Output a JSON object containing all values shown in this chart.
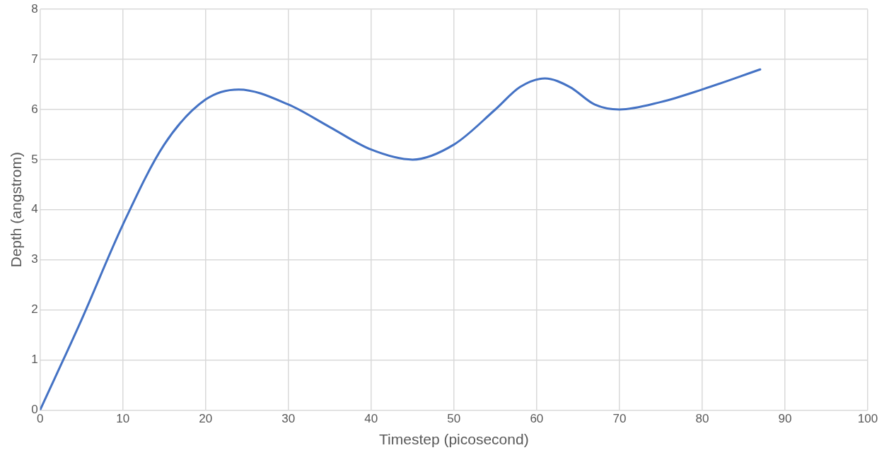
{
  "chart_data": {
    "type": "line",
    "xlabel": "Timestep (picosecond)",
    "ylabel": "Depth (angstrom)",
    "series": [
      {
        "color": "#4472c4",
        "x": [
          0,
          5,
          10,
          15,
          20,
          24,
          30,
          35,
          40,
          45,
          50,
          55,
          58,
          61,
          64,
          67,
          70,
          75,
          80,
          87
        ],
        "values": [
          0,
          1.8,
          3.7,
          5.3,
          6.2,
          6.4,
          6.1,
          5.65,
          5.2,
          5.0,
          5.3,
          6.0,
          6.45,
          6.62,
          6.45,
          6.1,
          6.0,
          6.15,
          6.4,
          6.8
        ]
      }
    ],
    "xlim": [
      0,
      100
    ],
    "xticks": [
      0,
      10,
      20,
      30,
      40,
      50,
      60,
      70,
      80,
      90,
      100
    ],
    "ylim": [
      0,
      8
    ],
    "yticks": [
      0,
      1,
      2,
      3,
      4,
      5,
      6,
      7,
      8
    ],
    "grid": true,
    "legend": false,
    "marker": "none",
    "line_style": "solid"
  }
}
